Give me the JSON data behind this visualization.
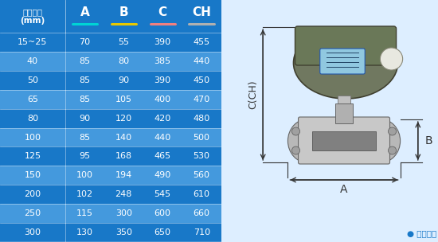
{
  "header": [
    "仪表口径\n(mm)",
    "A",
    "B",
    "C",
    "CH"
  ],
  "header_colors_underline": [
    "none",
    "#00d4d4",
    "#e8c800",
    "#f08080",
    "#b0b0b0"
  ],
  "rows": [
    [
      "15~25",
      "70",
      "55",
      "390",
      "455"
    ],
    [
      "40",
      "85",
      "80",
      "385",
      "440"
    ],
    [
      "50",
      "85",
      "90",
      "390",
      "450"
    ],
    [
      "65",
      "85",
      "105",
      "400",
      "470"
    ],
    [
      "80",
      "90",
      "120",
      "420",
      "480"
    ],
    [
      "100",
      "85",
      "140",
      "440",
      "500"
    ],
    [
      "125",
      "95",
      "168",
      "465",
      "530"
    ],
    [
      "150",
      "100",
      "194",
      "490",
      "560"
    ],
    [
      "200",
      "102",
      "248",
      "545",
      "610"
    ],
    [
      "250",
      "115",
      "300",
      "600",
      "660"
    ],
    [
      "300",
      "130",
      "350",
      "650",
      "710"
    ]
  ],
  "dark_row_indices": [
    0,
    2,
    4,
    6,
    8,
    10
  ],
  "color_dark_bg": "#1878c8",
  "color_light_bg": "#4499dd",
  "color_header_bg": "#1878c8",
  "color_text": "#ffffff",
  "right_panel_bg": "#ddeeff",
  "note_text": "● 常规仪表",
  "label_C_CH": "C(CH)",
  "label_A": "A",
  "label_B": "B",
  "arrow_color": "#333333",
  "dim_label_color": "#333333"
}
